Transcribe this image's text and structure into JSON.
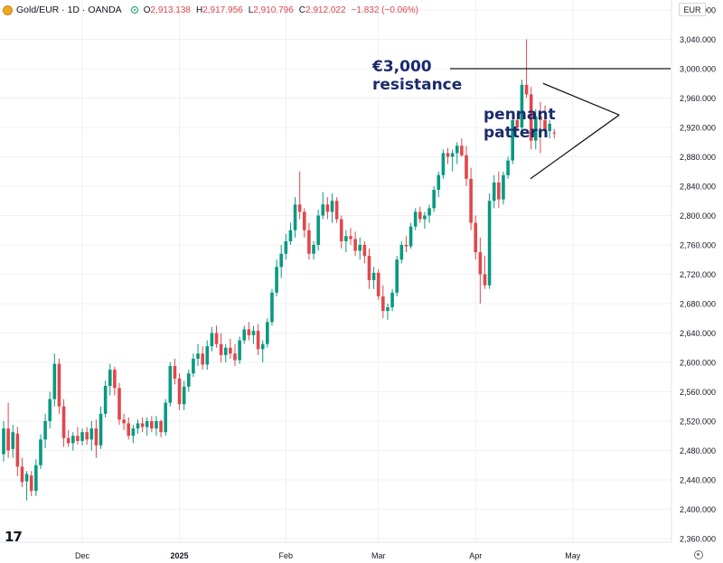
{
  "header": {
    "symbol": "Gold/EUR · 1D · OANDA",
    "open_label": "O",
    "open": "2,913.138",
    "high_label": "H",
    "high": "2,917.956",
    "low_label": "L",
    "low": "2,910.796",
    "close_label": "C",
    "close": "2,912.022",
    "change": "−1.832 (−0.06%)"
  },
  "currency_button": "EUR",
  "logo_text": "17",
  "colors": {
    "up": "#089981",
    "down": "#e0474c",
    "annotation": "#1a2a6c",
    "grid": "#eef0f3"
  },
  "annotations": {
    "resistance_line1": "€3,000",
    "resistance_line2": "resistance",
    "pennant_line1": "pennant",
    "pennant_line2": "pattern"
  },
  "chart_data": {
    "type": "candlestick",
    "title": "",
    "ylabel": "",
    "ylim": [
      2340,
      3100
    ],
    "y_ticks": [
      {
        "v": 2360,
        "label": "2,360.000"
      },
      {
        "v": 2400,
        "label": "2,400.000"
      },
      {
        "v": 2440,
        "label": "2,440.000"
      },
      {
        "v": 2480,
        "label": "2,480.000"
      },
      {
        "v": 2520,
        "label": "2,520.000"
      },
      {
        "v": 2560,
        "label": "2,560.000"
      },
      {
        "v": 2600,
        "label": "2,600.000"
      },
      {
        "v": 2640,
        "label": "2,640.000"
      },
      {
        "v": 2680,
        "label": "2,680.000"
      },
      {
        "v": 2720,
        "label": "2,720.000"
      },
      {
        "v": 2760,
        "label": "2,760.000"
      },
      {
        "v": 2800,
        "label": "2,800.000"
      },
      {
        "v": 2840,
        "label": "2,840.000"
      },
      {
        "v": 2880,
        "label": "2,880.000"
      },
      {
        "v": 2920,
        "label": "2,920.000"
      },
      {
        "v": 2960,
        "label": "2,960.000"
      },
      {
        "v": 3000,
        "label": "3,000.000"
      },
      {
        "v": 3040,
        "label": "3,040.000"
      },
      {
        "v": 3080,
        "label": "3,080.000"
      }
    ],
    "x_ticks": [
      {
        "i": 17,
        "label": "Dec",
        "bold": false
      },
      {
        "i": 38,
        "label": "2025",
        "bold": true
      },
      {
        "i": 61,
        "label": "Feb",
        "bold": false
      },
      {
        "i": 81,
        "label": "Mar",
        "bold": false
      },
      {
        "i": 102,
        "label": "Apr",
        "bold": false
      },
      {
        "i": 123,
        "label": "May",
        "bold": false
      }
    ],
    "resistance_level": 3000,
    "pennant": {
      "start_index": 115,
      "apex_index": 126,
      "upper_start": 2980,
      "lower_start": 2850,
      "apex": 2937
    },
    "candles": [
      [
        2475,
        2520,
        2465,
        2510
      ],
      [
        2510,
        2545,
        2470,
        2480
      ],
      [
        2482,
        2515,
        2470,
        2505
      ],
      [
        2503,
        2512,
        2445,
        2458
      ],
      [
        2458,
        2470,
        2430,
        2437
      ],
      [
        2438,
        2452,
        2412,
        2448
      ],
      [
        2446,
        2452,
        2418,
        2425
      ],
      [
        2425,
        2468,
        2418,
        2460
      ],
      [
        2460,
        2502,
        2455,
        2495
      ],
      [
        2495,
        2530,
        2483,
        2520
      ],
      [
        2520,
        2560,
        2510,
        2550
      ],
      [
        2550,
        2612,
        2540,
        2598
      ],
      [
        2598,
        2605,
        2530,
        2540
      ],
      [
        2540,
        2550,
        2485,
        2497
      ],
      [
        2497,
        2508,
        2485,
        2490
      ],
      [
        2490,
        2505,
        2480,
        2500
      ],
      [
        2500,
        2512,
        2488,
        2493
      ],
      [
        2493,
        2510,
        2487,
        2505
      ],
      [
        2505,
        2512,
        2488,
        2495
      ],
      [
        2495,
        2520,
        2480,
        2510
      ],
      [
        2510,
        2522,
        2470,
        2487
      ],
      [
        2487,
        2540,
        2482,
        2530
      ],
      [
        2530,
        2575,
        2525,
        2568
      ],
      [
        2568,
        2598,
        2555,
        2590
      ],
      [
        2590,
        2594,
        2555,
        2565
      ],
      [
        2565,
        2572,
        2515,
        2522
      ],
      [
        2522,
        2530,
        2508,
        2517
      ],
      [
        2517,
        2525,
        2495,
        2500
      ],
      [
        2500,
        2515,
        2490,
        2510
      ],
      [
        2510,
        2522,
        2503,
        2517
      ],
      [
        2517,
        2525,
        2505,
        2512
      ],
      [
        2512,
        2525,
        2500,
        2520
      ],
      [
        2520,
        2527,
        2505,
        2510
      ],
      [
        2510,
        2527,
        2500,
        2520
      ],
      [
        2520,
        2522,
        2498,
        2505
      ],
      [
        2505,
        2550,
        2500,
        2545
      ],
      [
        2545,
        2600,
        2540,
        2595
      ],
      [
        2595,
        2605,
        2570,
        2578
      ],
      [
        2578,
        2585,
        2535,
        2543
      ],
      [
        2543,
        2575,
        2535,
        2567
      ],
      [
        2567,
        2590,
        2560,
        2585
      ],
      [
        2585,
        2612,
        2580,
        2605
      ],
      [
        2605,
        2625,
        2595,
        2612
      ],
      [
        2612,
        2622,
        2590,
        2597
      ],
      [
        2597,
        2630,
        2590,
        2622
      ],
      [
        2622,
        2648,
        2615,
        2640
      ],
      [
        2640,
        2650,
        2620,
        2625
      ],
      [
        2625,
        2640,
        2600,
        2610
      ],
      [
        2610,
        2625,
        2600,
        2620
      ],
      [
        2620,
        2632,
        2605,
        2612
      ],
      [
        2612,
        2625,
        2595,
        2603
      ],
      [
        2603,
        2635,
        2598,
        2630
      ],
      [
        2630,
        2650,
        2625,
        2645
      ],
      [
        2645,
        2655,
        2630,
        2637
      ],
      [
        2637,
        2650,
        2625,
        2643
      ],
      [
        2643,
        2652,
        2610,
        2618
      ],
      [
        2618,
        2630,
        2600,
        2625
      ],
      [
        2625,
        2660,
        2620,
        2655
      ],
      [
        2655,
        2700,
        2650,
        2695
      ],
      [
        2695,
        2740,
        2690,
        2730
      ],
      [
        2730,
        2760,
        2715,
        2748
      ],
      [
        2748,
        2775,
        2740,
        2765
      ],
      [
        2765,
        2790,
        2760,
        2780
      ],
      [
        2780,
        2825,
        2770,
        2815
      ],
      [
        2815,
        2860,
        2795,
        2805
      ],
      [
        2805,
        2810,
        2770,
        2780
      ],
      [
        2780,
        2790,
        2740,
        2748
      ],
      [
        2748,
        2765,
        2740,
        2760
      ],
      [
        2760,
        2808,
        2752,
        2800
      ],
      [
        2800,
        2832,
        2795,
        2815
      ],
      [
        2815,
        2825,
        2795,
        2805
      ],
      [
        2805,
        2830,
        2790,
        2820
      ],
      [
        2820,
        2825,
        2790,
        2795
      ],
      [
        2795,
        2800,
        2755,
        2765
      ],
      [
        2765,
        2780,
        2750,
        2772
      ],
      [
        2772,
        2783,
        2760,
        2768
      ],
      [
        2768,
        2778,
        2745,
        2752
      ],
      [
        2752,
        2770,
        2740,
        2760
      ],
      [
        2760,
        2765,
        2735,
        2745
      ],
      [
        2745,
        2755,
        2700,
        2712
      ],
      [
        2712,
        2730,
        2700,
        2722
      ],
      [
        2722,
        2727,
        2685,
        2690
      ],
      [
        2690,
        2705,
        2660,
        2670
      ],
      [
        2670,
        2680,
        2658,
        2675
      ],
      [
        2675,
        2700,
        2670,
        2695
      ],
      [
        2695,
        2745,
        2690,
        2740
      ],
      [
        2740,
        2765,
        2735,
        2760
      ],
      [
        2760,
        2772,
        2750,
        2758
      ],
      [
        2758,
        2790,
        2755,
        2785
      ],
      [
        2785,
        2810,
        2780,
        2805
      ],
      [
        2805,
        2812,
        2790,
        2795
      ],
      [
        2795,
        2805,
        2782,
        2800
      ],
      [
        2800,
        2815,
        2790,
        2810
      ],
      [
        2810,
        2840,
        2805,
        2835
      ],
      [
        2835,
        2860,
        2825,
        2855
      ],
      [
        2855,
        2890,
        2850,
        2885
      ],
      [
        2885,
        2892,
        2870,
        2880
      ],
      [
        2880,
        2890,
        2860,
        2885
      ],
      [
        2885,
        2900,
        2870,
        2895
      ],
      [
        2895,
        2905,
        2880,
        2882
      ],
      [
        2882,
        2895,
        2840,
        2850
      ],
      [
        2850,
        2865,
        2780,
        2790
      ],
      [
        2790,
        2800,
        2740,
        2750
      ],
      [
        2750,
        2770,
        2680,
        2720
      ],
      [
        2720,
        2745,
        2700,
        2705
      ],
      [
        2705,
        2830,
        2700,
        2820
      ],
      [
        2820,
        2855,
        2810,
        2845
      ],
      [
        2845,
        2860,
        2810,
        2822
      ],
      [
        2822,
        2860,
        2815,
        2855
      ],
      [
        2855,
        2880,
        2850,
        2875
      ],
      [
        2875,
        2935,
        2870,
        2930
      ],
      [
        2930,
        2940,
        2915,
        2920
      ],
      [
        2920,
        2985,
        2915,
        2978
      ],
      [
        2978,
        3040,
        2960,
        2965
      ],
      [
        2965,
        2975,
        2890,
        2902
      ],
      [
        2902,
        2945,
        2890,
        2935
      ],
      [
        2935,
        2955,
        2885,
        2930
      ],
      [
        2930,
        2950,
        2910,
        2915
      ],
      [
        2915,
        2930,
        2905,
        2925
      ],
      [
        2913,
        2918,
        2905,
        2912
      ]
    ]
  }
}
